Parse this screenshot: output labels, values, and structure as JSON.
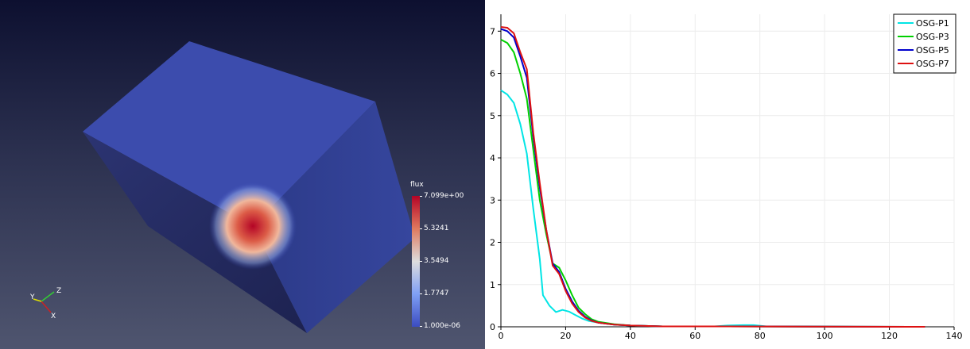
{
  "render_view": {
    "colorbar": {
      "title": "flux",
      "labels": [
        "7.099e+00",
        "5.3241",
        "3.5494",
        "1.7747",
        "1.000e-06"
      ],
      "colors": [
        "#b40426",
        "#e0795e",
        "#dddddd",
        "#7f9ff5",
        "#3b4cc0"
      ]
    },
    "axes": {
      "x": "X",
      "y": "Y",
      "z": "Z"
    }
  },
  "chart_data": {
    "type": "line",
    "xlim": [
      0,
      140
    ],
    "ylim": [
      0,
      7.4
    ],
    "x_ticks": [
      0,
      20,
      40,
      60,
      80,
      100,
      120,
      140
    ],
    "y_ticks": [
      0,
      1,
      2,
      3,
      4,
      5,
      6,
      7
    ],
    "grid": true,
    "legend_position": "top-right",
    "series": [
      {
        "name": "OSG-P1",
        "color": "#00e5e5",
        "points": [
          [
            0,
            5.6
          ],
          [
            2,
            5.5
          ],
          [
            4,
            5.3
          ],
          [
            6,
            4.8
          ],
          [
            8,
            4.1
          ],
          [
            10,
            2.8
          ],
          [
            12,
            1.6
          ],
          [
            13,
            0.75
          ],
          [
            15,
            0.5
          ],
          [
            17,
            0.35
          ],
          [
            19,
            0.4
          ],
          [
            21,
            0.36
          ],
          [
            23,
            0.28
          ],
          [
            25,
            0.2
          ],
          [
            27,
            0.14
          ],
          [
            30,
            0.1
          ],
          [
            35,
            0.05
          ],
          [
            40,
            0.03
          ],
          [
            50,
            0.01
          ],
          [
            60,
            0.01
          ],
          [
            66,
            0.01
          ],
          [
            70,
            0.03
          ],
          [
            75,
            0.04
          ],
          [
            78,
            0.04
          ],
          [
            82,
            0.01
          ],
          [
            90,
            0.01
          ],
          [
            110,
            0.0
          ],
          [
            131,
            0.0
          ]
        ]
      },
      {
        "name": "OSG-P3",
        "color": "#00d000",
        "points": [
          [
            0,
            6.8
          ],
          [
            2,
            6.72
          ],
          [
            4,
            6.5
          ],
          [
            6,
            6.0
          ],
          [
            8,
            5.4
          ],
          [
            10,
            4.2
          ],
          [
            12,
            3.0
          ],
          [
            14,
            2.2
          ],
          [
            16,
            1.5
          ],
          [
            18,
            1.4
          ],
          [
            20,
            1.1
          ],
          [
            22,
            0.75
          ],
          [
            24,
            0.45
          ],
          [
            26,
            0.3
          ],
          [
            28,
            0.18
          ],
          [
            30,
            0.12
          ],
          [
            35,
            0.06
          ],
          [
            40,
            0.03
          ],
          [
            50,
            0.01
          ],
          [
            70,
            0.01
          ],
          [
            131,
            0.0
          ]
        ]
      },
      {
        "name": "OSG-P5",
        "color": "#0000cc",
        "points": [
          [
            0,
            7.05
          ],
          [
            2,
            7.0
          ],
          [
            4,
            6.85
          ],
          [
            6,
            6.4
          ],
          [
            8,
            5.9
          ],
          [
            10,
            4.5
          ],
          [
            12,
            3.3
          ],
          [
            14,
            2.3
          ],
          [
            16,
            1.5
          ],
          [
            18,
            1.3
          ],
          [
            20,
            0.9
          ],
          [
            22,
            0.6
          ],
          [
            24,
            0.38
          ],
          [
            26,
            0.24
          ],
          [
            28,
            0.15
          ],
          [
            30,
            0.1
          ],
          [
            35,
            0.05
          ],
          [
            40,
            0.03
          ],
          [
            50,
            0.01
          ],
          [
            70,
            0.01
          ],
          [
            131,
            0.0
          ]
        ]
      },
      {
        "name": "OSG-P7",
        "color": "#dd1111",
        "points": [
          [
            0,
            7.1
          ],
          [
            2,
            7.08
          ],
          [
            4,
            6.95
          ],
          [
            6,
            6.5
          ],
          [
            8,
            6.1
          ],
          [
            10,
            4.6
          ],
          [
            12,
            3.4
          ],
          [
            14,
            2.3
          ],
          [
            16,
            1.45
          ],
          [
            18,
            1.25
          ],
          [
            20,
            0.85
          ],
          [
            22,
            0.55
          ],
          [
            24,
            0.35
          ],
          [
            26,
            0.22
          ],
          [
            28,
            0.14
          ],
          [
            30,
            0.1
          ],
          [
            35,
            0.05
          ],
          [
            40,
            0.03
          ],
          [
            50,
            0.01
          ],
          [
            70,
            0.01
          ],
          [
            131,
            0.0
          ]
        ]
      }
    ]
  }
}
